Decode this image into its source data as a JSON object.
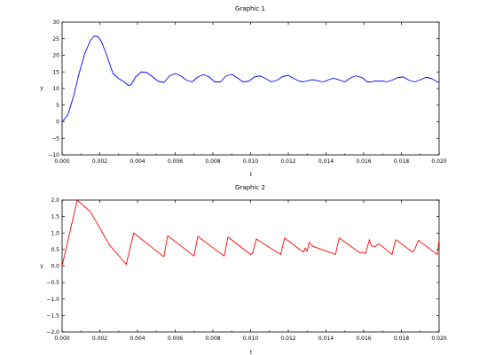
{
  "chart_data": [
    {
      "type": "line",
      "title": "Graphic 1",
      "xlabel": "t",
      "ylabel": "y",
      "xlim": [
        0.0,
        0.02
      ],
      "ylim": [
        -10,
        30
      ],
      "x_ticks": [
        "0.000",
        "0.002",
        "0.004",
        "0.006",
        "0.008",
        "0.010",
        "0.012",
        "0.014",
        "0.016",
        "0.018",
        "0.020"
      ],
      "y_ticks": [
        "−10",
        "−5",
        "0",
        "5",
        "10",
        "15",
        "20",
        "25",
        "30"
      ],
      "grid": false,
      "series": [
        {
          "color": "#0000ff",
          "x": [
            0.0,
            0.0003,
            0.0006,
            0.0009,
            0.0012,
            0.0015,
            0.0017,
            0.0019,
            0.0021,
            0.0024,
            0.0027,
            0.003,
            0.0033,
            0.0035,
            0.0036,
            0.0037,
            0.0039,
            0.0042,
            0.0045,
            0.0048,
            0.0051,
            0.0054,
            0.0057,
            0.006,
            0.0063,
            0.0066,
            0.0069,
            0.0072,
            0.0075,
            0.0078,
            0.0081,
            0.0084,
            0.0087,
            0.009,
            0.0093,
            0.0096,
            0.0099,
            0.0102,
            0.0105,
            0.0108,
            0.0111,
            0.0114,
            0.0117,
            0.012,
            0.0123,
            0.0126,
            0.0128,
            0.013,
            0.0132,
            0.0134,
            0.0136,
            0.0138,
            0.014,
            0.0142,
            0.0144,
            0.0147,
            0.015,
            0.0153,
            0.0156,
            0.0159,
            0.0162,
            0.0164,
            0.0166,
            0.0168,
            0.017,
            0.0172,
            0.0175,
            0.0178,
            0.0181,
            0.0184,
            0.0187,
            0.019,
            0.0193,
            0.0196,
            0.0199,
            0.02
          ],
          "y": [
            0.0,
            2.0,
            7.5,
            14.5,
            20.5,
            24.5,
            25.8,
            25.7,
            24.0,
            19.5,
            14.5,
            13.0,
            12.0,
            11.0,
            11.0,
            11.5,
            13.5,
            15.0,
            14.8,
            13.5,
            12.2,
            11.8,
            13.8,
            14.5,
            13.8,
            12.5,
            12.0,
            13.5,
            14.2,
            13.5,
            12.0,
            12.0,
            13.8,
            14.3,
            13.2,
            12.0,
            12.2,
            13.5,
            13.8,
            13.0,
            12.0,
            12.5,
            13.6,
            14.0,
            13.0,
            12.2,
            12.0,
            12.3,
            12.6,
            12.6,
            12.3,
            12.0,
            12.3,
            12.8,
            13.1,
            12.6,
            12.0,
            13.2,
            13.8,
            13.3,
            12.0,
            12.0,
            12.3,
            12.2,
            12.3,
            12.0,
            12.5,
            13.3,
            13.5,
            12.5,
            12.0,
            12.6,
            13.4,
            13.0,
            12.0,
            12.0
          ]
        }
      ]
    },
    {
      "type": "line",
      "title": "Graphic 2",
      "xlabel": "t",
      "ylabel": "y",
      "xlim": [
        0.0,
        0.02
      ],
      "ylim": [
        -2.0,
        2.0
      ],
      "x_ticks": [
        "0.000",
        "0.002",
        "0.004",
        "0.006",
        "0.008",
        "0.010",
        "0.012",
        "0.014",
        "0.016",
        "0.018",
        "0.020"
      ],
      "y_ticks": [
        "−2.0",
        "−1.5",
        "−1.0",
        "−0.5",
        "0.0",
        "0.5",
        "1.0",
        "1.5",
        "2.0"
      ],
      "grid": false,
      "series": [
        {
          "color": "#ff0000",
          "x": [
            0.0,
            0.0008,
            0.0015,
            0.0025,
            0.0034,
            0.0038,
            0.0054,
            0.0056,
            0.007,
            0.0072,
            0.0086,
            0.0088,
            0.01,
            0.0101,
            0.0103,
            0.0116,
            0.0118,
            0.0128,
            0.0129,
            0.013,
            0.0131,
            0.0133,
            0.0145,
            0.0147,
            0.0158,
            0.0159,
            0.0161,
            0.0163,
            0.0164,
            0.0166,
            0.0168,
            0.0175,
            0.0177,
            0.0186,
            0.0187,
            0.0189,
            0.0199,
            0.02
          ],
          "y": [
            0.0,
            2.0,
            1.65,
            0.65,
            0.05,
            1.0,
            0.28,
            0.92,
            0.3,
            0.9,
            0.3,
            0.88,
            0.35,
            0.38,
            0.82,
            0.35,
            0.85,
            0.42,
            0.55,
            0.45,
            0.72,
            0.6,
            0.35,
            0.85,
            0.4,
            0.42,
            0.38,
            0.8,
            0.62,
            0.58,
            0.68,
            0.35,
            0.8,
            0.42,
            0.5,
            0.78,
            0.35,
            0.8
          ]
        }
      ]
    }
  ]
}
